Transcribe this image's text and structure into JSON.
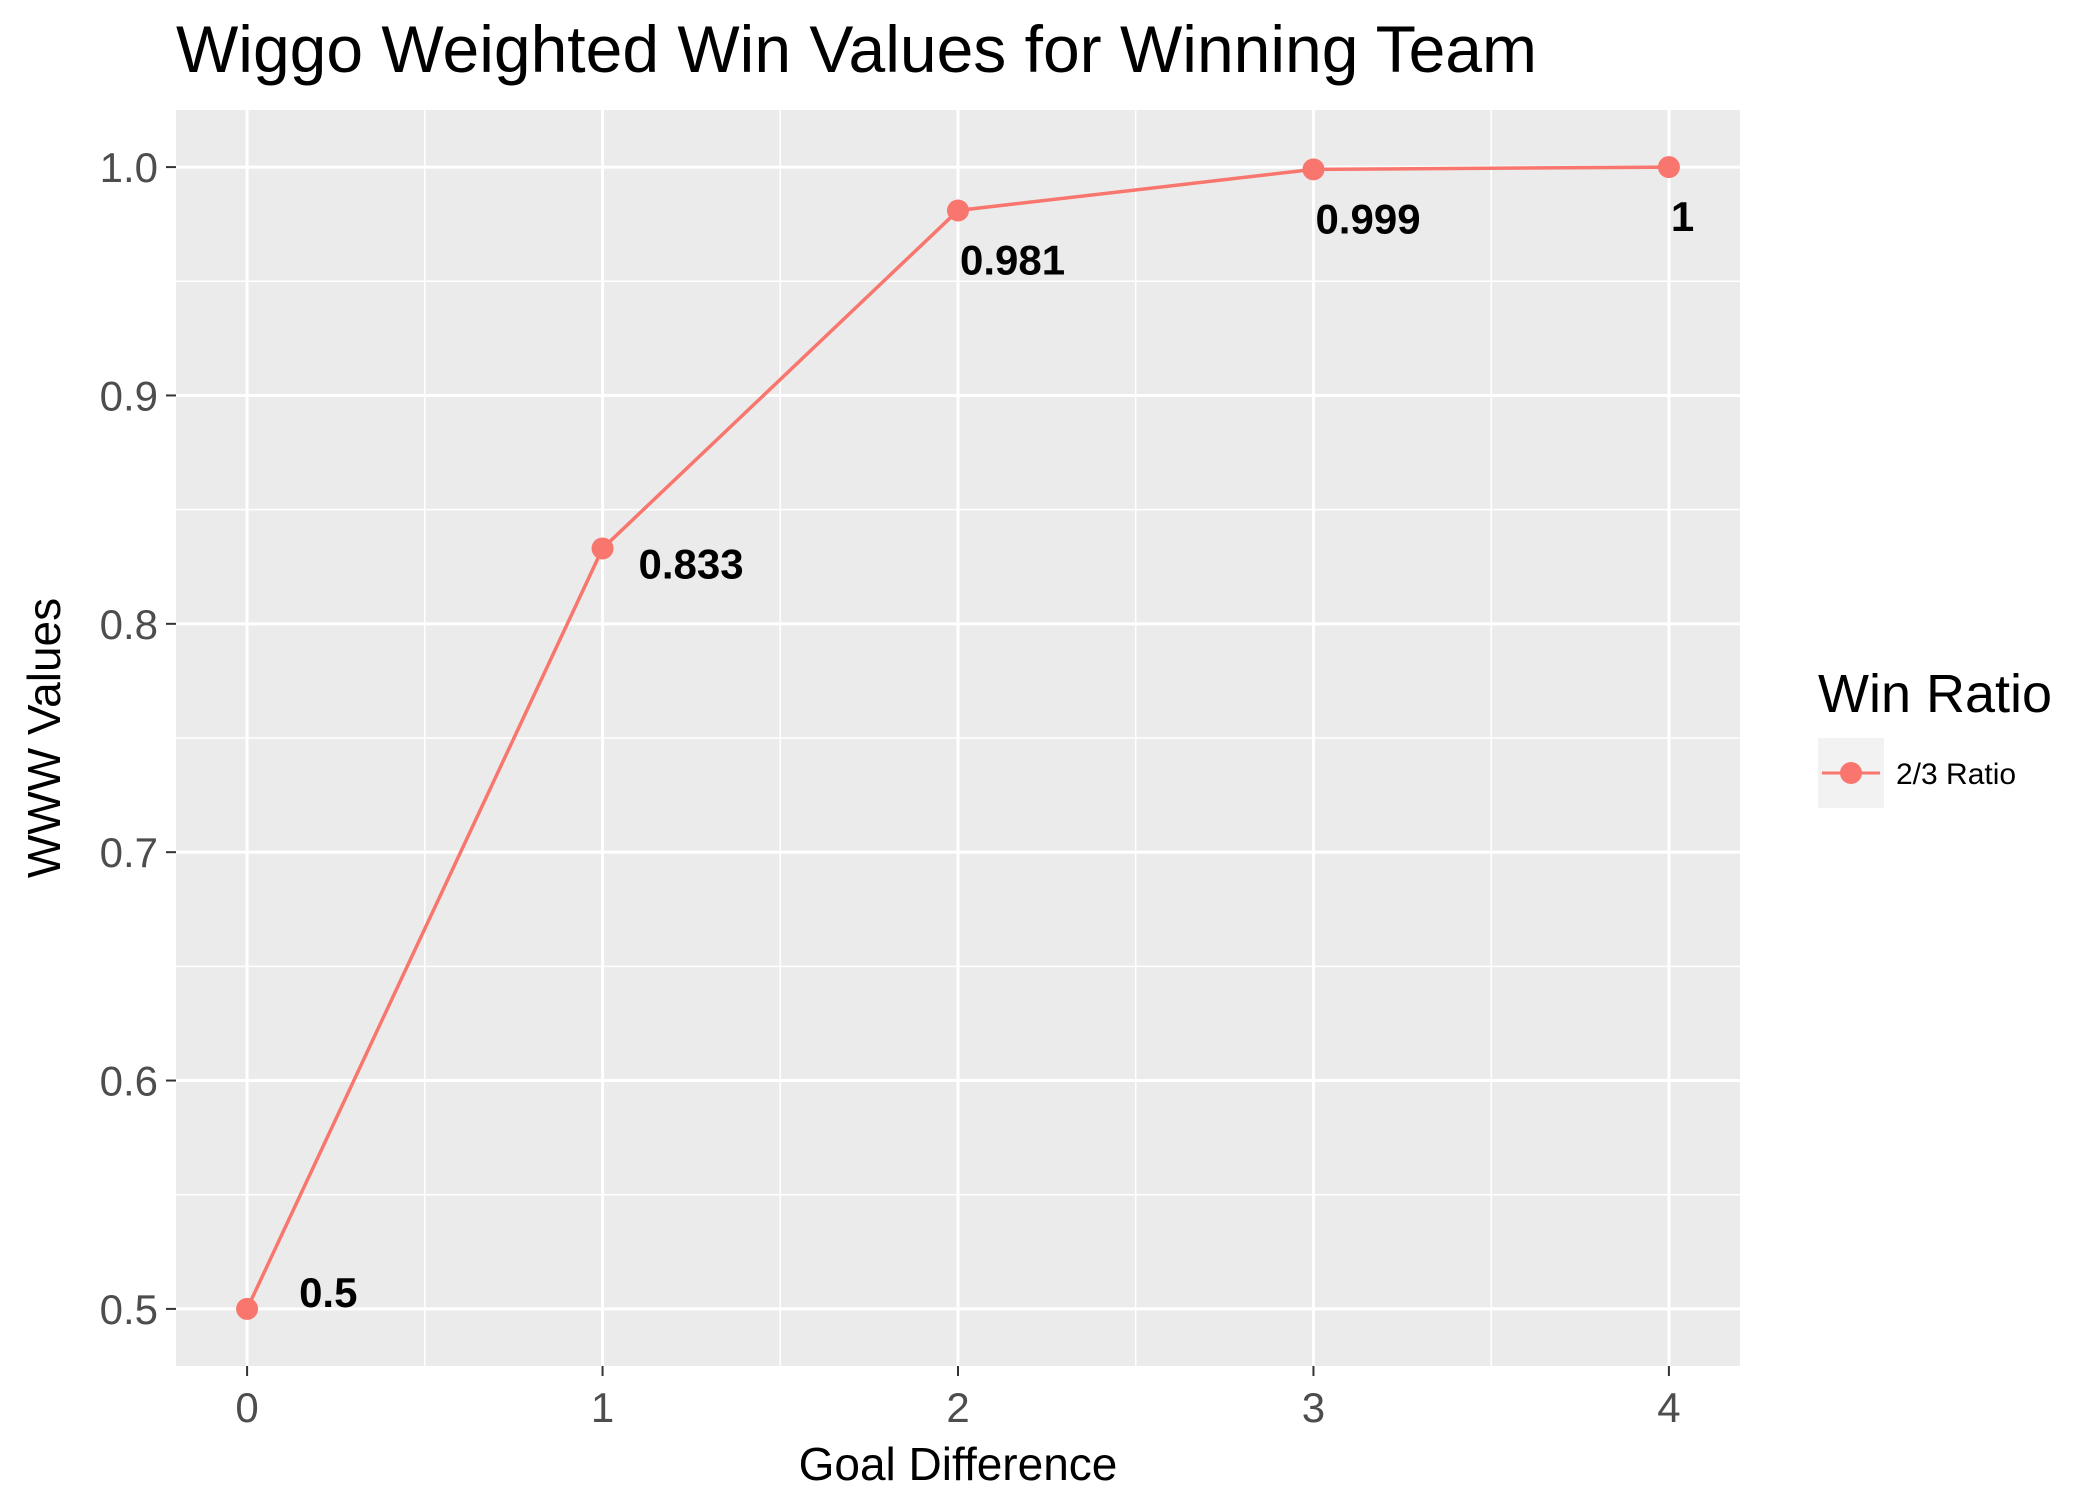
{
  "chart_data": {
    "type": "line",
    "title": "Wiggo Weighted Win Values for Winning Team",
    "xlabel": "Goal Difference",
    "ylabel": "WWW Values",
    "x": [
      0,
      1,
      2,
      3,
      4
    ],
    "xlim": [
      -0.2,
      4.2
    ],
    "ylim": [
      0.475,
      1.025
    ],
    "x_ticks": [
      "0",
      "1",
      "2",
      "3",
      "4"
    ],
    "y_ticks": [
      "0.5",
      "0.6",
      "0.7",
      "0.8",
      "0.9",
      "1.0"
    ],
    "series": [
      {
        "name": "2/3 Ratio",
        "color": "#F8766D",
        "values": [
          0.5,
          0.833,
          0.981,
          0.999,
          1.0
        ],
        "labels": [
          "0.5",
          "0.833",
          "0.981",
          "0.999",
          "1"
        ]
      }
    ],
    "legend": {
      "title": "Win Ratio",
      "position": "right"
    },
    "grid": true,
    "panel_background": "#EBEBEB"
  }
}
